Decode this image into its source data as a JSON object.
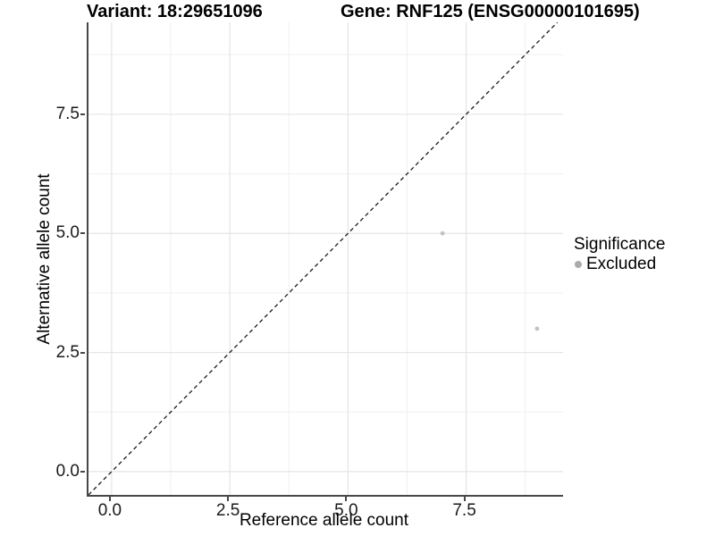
{
  "chart_data": {
    "type": "scatter",
    "title_left": "Variant: 18:29651096",
    "title_right": "Gene: RNF125 (ENSG00000101695)",
    "xlabel": "Reference allele count",
    "ylabel": "Alternative allele count",
    "xlim": [
      -0.49,
      9.55
    ],
    "ylim": [
      -0.49,
      9.43
    ],
    "x_ticks": [
      {
        "value": 0,
        "label": "0.0"
      },
      {
        "value": 2.5,
        "label": "2.5"
      },
      {
        "value": 5,
        "label": "5.0"
      },
      {
        "value": 7.5,
        "label": "7.5"
      }
    ],
    "y_ticks": [
      {
        "value": 0,
        "label": "0.0"
      },
      {
        "value": 2.5,
        "label": "2.5"
      },
      {
        "value": 5,
        "label": "5.0"
      },
      {
        "value": 7.5,
        "label": "7.5"
      }
    ],
    "x_minor_ticks": [
      1.25,
      3.75,
      6.25,
      8.75
    ],
    "y_minor_ticks": [
      1.25,
      3.75,
      6.25,
      8.75
    ],
    "grid": {
      "major_color": "#e4e4e4",
      "minor_color": "#f0f0f0"
    },
    "reference_line": {
      "slope": 1,
      "intercept": 0,
      "style": "dashed",
      "color": "#1a1a1a"
    },
    "series": [
      {
        "name": "Excluded",
        "color": "#c2c2c2",
        "point_radius": 2.4,
        "points": [
          {
            "x": 7,
            "y": 5
          },
          {
            "x": 9,
            "y": 3
          }
        ]
      }
    ],
    "legend": {
      "title": "Significance",
      "position": "right",
      "items": [
        {
          "label": "Excluded",
          "color": "#ababab"
        }
      ]
    }
  }
}
